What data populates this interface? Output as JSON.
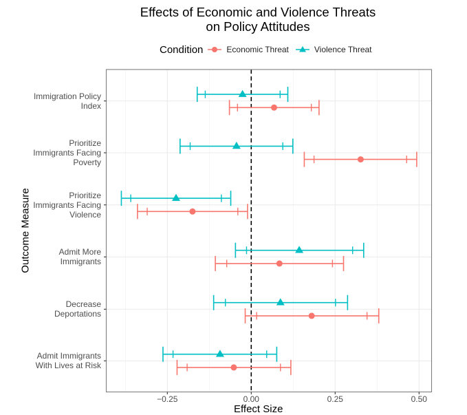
{
  "chart_data": {
    "type": "scatter",
    "subtype": "coefficient-plot-with-error-bars",
    "title": [
      "Effects of Economic and Violence Threats",
      "on Policy Attitudes"
    ],
    "xlabel": "Effect Size",
    "ylabel": "Outcome Measure",
    "xlim": [
      -0.43,
      0.54
    ],
    "x_ticks": [
      -0.25,
      0.0,
      0.25,
      0.5
    ],
    "x_tick_labels": [
      "−0.25",
      "0.00",
      "0.25",
      "0.50"
    ],
    "grid": true,
    "reference_line": {
      "x": 0,
      "style": "dashed"
    },
    "legend": {
      "title": "Condition",
      "position": "top",
      "entries": [
        {
          "name": "Economic Threat",
          "color": "#F8766D",
          "marker": "circle"
        },
        {
          "name": "Violence Threat",
          "color": "#00BFC4",
          "marker": "triangle"
        }
      ]
    },
    "categories": [
      [
        "Immigration Policy",
        "Index"
      ],
      [
        "Prioritize",
        "Immigrants Facing",
        "Poverty"
      ],
      [
        "Prioritize",
        "Immigrants Facing",
        "Violence"
      ],
      [
        "Admit More",
        "Immigrants"
      ],
      [
        "Decrease",
        "Deportations"
      ],
      [
        "Admit Immigrants",
        "With Lives at Risk"
      ]
    ],
    "series": [
      {
        "name": "Violence Threat",
        "color": "#00BFC4",
        "marker": "triangle",
        "estimate": [
          -0.026,
          -0.044,
          -0.224,
          0.143,
          0.087,
          -0.093
        ],
        "ci95_low": [
          -0.161,
          -0.212,
          -0.387,
          -0.047,
          -0.112,
          -0.263
        ],
        "ci95_high": [
          0.109,
          0.124,
          -0.061,
          0.335,
          0.287,
          0.076
        ],
        "ci90_low": [
          -0.137,
          -0.182,
          -0.359,
          -0.014,
          -0.077,
          -0.233
        ],
        "ci90_high": [
          0.086,
          0.094,
          -0.089,
          0.302,
          0.251,
          0.046
        ]
      },
      {
        "name": "Economic Threat",
        "color": "#F8766D",
        "marker": "circle",
        "estimate": [
          0.068,
          0.326,
          -0.175,
          0.084,
          0.18,
          -0.052
        ],
        "ci95_low": [
          -0.065,
          0.158,
          -0.339,
          -0.107,
          -0.018,
          -0.221
        ],
        "ci95_high": [
          0.202,
          0.493,
          -0.011,
          0.275,
          0.38,
          0.118
        ],
        "ci90_low": [
          -0.041,
          0.187,
          -0.31,
          -0.073,
          0.016,
          -0.191
        ],
        "ci90_high": [
          0.179,
          0.463,
          -0.04,
          0.242,
          0.345,
          0.087
        ]
      }
    ]
  }
}
